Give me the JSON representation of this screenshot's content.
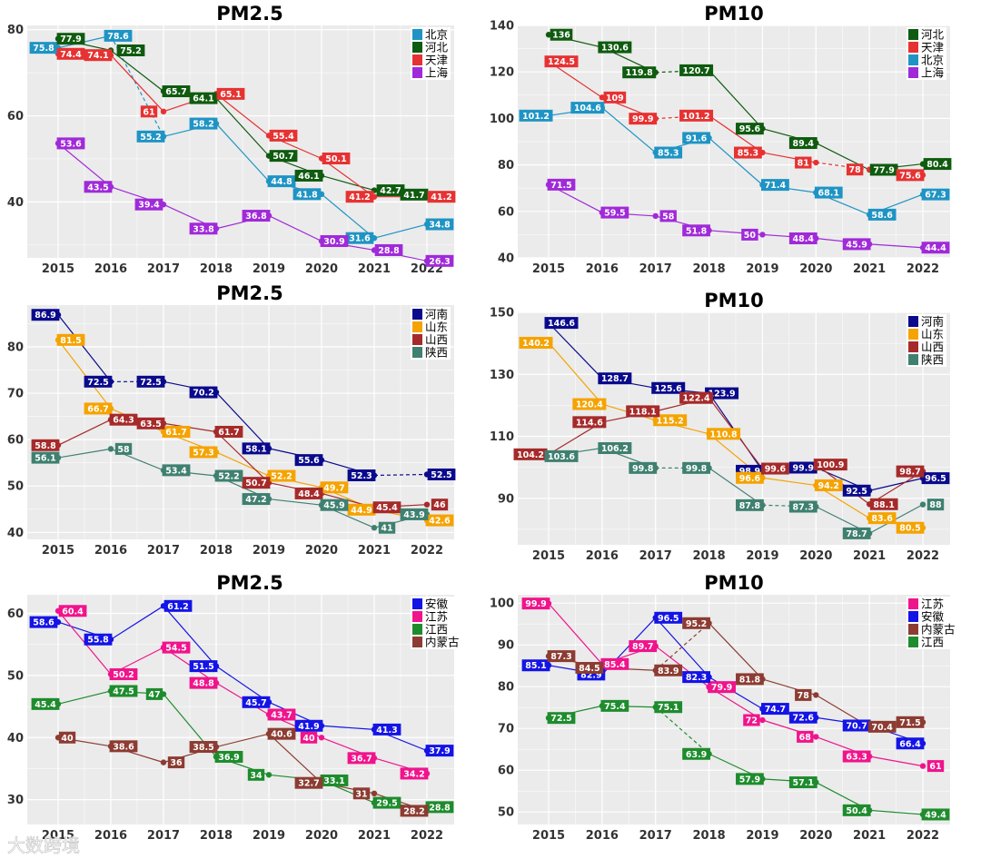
{
  "watermark": "大数跨境",
  "chart_data": [
    {
      "type": "line",
      "title": "PM2.5",
      "categories": [
        "2015",
        "2016",
        "2017",
        "2018",
        "2019",
        "2020",
        "2021",
        "2022"
      ],
      "ylim": [
        27,
        81
      ],
      "yticks": [
        40,
        60,
        80
      ],
      "legend": [
        "北京",
        "河北",
        "天津",
        "上海"
      ],
      "series": [
        {
          "name": "北京",
          "color": "#1f94c4",
          "values": [
            75.8,
            78.6,
            55.2,
            58.2,
            44.8,
            41.8,
            31.6,
            34.8
          ],
          "labels": [
            75.8,
            78.6,
            55.2,
            58.2,
            44.8,
            41.8,
            31.6,
            34.8
          ],
          "dashed": [
            1
          ]
        },
        {
          "name": "河北",
          "color": "#0f5b0f",
          "values": [
            77.9,
            75.2,
            65.7,
            64.1,
            50.7,
            46.1,
            42.7,
            41.7
          ],
          "labels": [
            77.9,
            75.2,
            65.7,
            64.1,
            50.7,
            46.1,
            42.7,
            41.7
          ],
          "dashed": []
        },
        {
          "name": "天津",
          "color": "#e63232",
          "values": [
            74.4,
            74.1,
            61,
            65.1,
            55.4,
            50.1,
            41.2,
            41.2
          ],
          "labels": [
            74.4,
            74.1,
            61,
            65.1,
            55.4,
            50.1,
            41.2,
            41.2
          ],
          "dashed": []
        },
        {
          "name": "上海",
          "color": "#a02ad8",
          "values": [
            53.6,
            43.5,
            39.4,
            33.8,
            36.8,
            30.9,
            28.8,
            26.3
          ],
          "labels": [
            53.6,
            43.5,
            39.4,
            33.8,
            36.8,
            30.9,
            28.8,
            26.3
          ],
          "dashed": []
        }
      ]
    },
    {
      "type": "line",
      "title": "PM10",
      "categories": [
        "2015",
        "2016",
        "2017",
        "2018",
        "2019",
        "2020",
        "2021",
        "2022"
      ],
      "ylim": [
        40,
        140
      ],
      "yticks": [
        40,
        60,
        80,
        100,
        120,
        140
      ],
      "legend": [
        "河北",
        "天津",
        "北京",
        "上海"
      ],
      "series": [
        {
          "name": "河北",
          "color": "#0f5b0f",
          "values": [
            136,
            130.6,
            119.8,
            120.7,
            95.6,
            89.4,
            77.9,
            80.4
          ],
          "labels": [
            136,
            130.6,
            119.8,
            120.7,
            95.6,
            89.4,
            77.9,
            80.4
          ],
          "dashed": [
            2
          ]
        },
        {
          "name": "天津",
          "color": "#e63232",
          "values": [
            124.5,
            109,
            99.9,
            101.2,
            85.3,
            81,
            78,
            75.6
          ],
          "labels": [
            124.5,
            109,
            99.9,
            101.2,
            85.3,
            81,
            78,
            75.6
          ],
          "dashed": [
            2,
            5
          ]
        },
        {
          "name": "北京",
          "color": "#1f94c4",
          "values": [
            101.2,
            104.6,
            85.3,
            91.6,
            71.4,
            68.1,
            58.6,
            67.3
          ],
          "labels": [
            101.2,
            104.6,
            85.3,
            91.6,
            71.4,
            68.1,
            58.6,
            67.3
          ],
          "dashed": []
        },
        {
          "name": "上海",
          "color": "#a02ad8",
          "values": [
            71.5,
            59.5,
            58,
            51.8,
            50,
            48.4,
            45.9,
            44.4
          ],
          "labels": [
            71.5,
            59.5,
            58,
            51.8,
            50,
            48.4,
            45.9,
            44.4
          ],
          "dashed": []
        }
      ]
    },
    {
      "type": "line",
      "title": "PM2.5",
      "categories": [
        "2015",
        "2016",
        "2017",
        "2018",
        "2019",
        "2020",
        "2021",
        "2022"
      ],
      "ylim": [
        38.5,
        89
      ],
      "yticks": [
        40,
        50,
        60,
        70,
        80
      ],
      "legend": [
        "河南",
        "山东",
        "山西",
        "陕西"
      ],
      "series": [
        {
          "name": "河南",
          "color": "#0a0a8c",
          "values": [
            86.9,
            72.5,
            72.5,
            70.2,
            58.1,
            55.6,
            52.3,
            52.5
          ],
          "labels": [
            86.9,
            72.5,
            72.5,
            70.2,
            58.1,
            55.6,
            52.3,
            52.5
          ],
          "dashed": [
            1,
            6
          ]
        },
        {
          "name": "山东",
          "color": "#f5a300",
          "values": [
            81.5,
            66.7,
            61.7,
            57.3,
            52.2,
            49.7,
            44.9,
            42.6
          ],
          "labels": [
            81.5,
            66.7,
            61.7,
            57.3,
            52.2,
            49.7,
            44.9,
            42.6
          ],
          "dashed": []
        },
        {
          "name": "山西",
          "color": "#a62a2a",
          "values": [
            58.8,
            64.3,
            63.5,
            61.7,
            50.7,
            48.4,
            45.4,
            46
          ],
          "labels": [
            58.8,
            64.3,
            63.5,
            61.7,
            50.7,
            48.4,
            45.4,
            46
          ],
          "dashed": []
        },
        {
          "name": "陕西",
          "color": "#3f8070",
          "values": [
            56.1,
            58,
            53.4,
            52.2,
            47.2,
            45.9,
            41,
            43.9
          ],
          "labels": [
            56.1,
            58,
            53.4,
            52.2,
            47.2,
            45.9,
            41,
            43.9
          ],
          "dashed": []
        }
      ]
    },
    {
      "type": "line",
      "title": "PM10",
      "categories": [
        "2015",
        "2016",
        "2017",
        "2018",
        "2019",
        "2020",
        "2021",
        "2022"
      ],
      "ylim": [
        75,
        150
      ],
      "yticks": [
        90,
        110,
        130,
        150
      ],
      "legend": [
        "河南",
        "山东",
        "山西",
        "陕西"
      ],
      "series": [
        {
          "name": "河南",
          "color": "#0a0a8c",
          "values": [
            146.6,
            128.7,
            125.6,
            123.9,
            98.9,
            99.9,
            92.5,
            96.5
          ],
          "labels": [
            146.6,
            128.7,
            125.6,
            123.9,
            98.9,
            99.9,
            92.5,
            96.5
          ],
          "dashed": []
        },
        {
          "name": "山东",
          "color": "#f5a300",
          "values": [
            140.2,
            120.4,
            115.2,
            110.8,
            96.6,
            94.2,
            83.6,
            80.5
          ],
          "labels": [
            140.2,
            120.4,
            115.2,
            110.8,
            96.6,
            94.2,
            83.6,
            80.5
          ],
          "dashed": []
        },
        {
          "name": "山西",
          "color": "#a62a2a",
          "values": [
            104.2,
            114.6,
            118.1,
            122.4,
            99.6,
            100.9,
            88.1,
            98.7
          ],
          "labels": [
            104.2,
            114.6,
            118.1,
            122.4,
            99.6,
            100.9,
            88.1,
            98.7
          ],
          "dashed": []
        },
        {
          "name": "陕西",
          "color": "#3f8070",
          "values": [
            103.6,
            106.2,
            99.8,
            99.8,
            87.8,
            87.3,
            78.7,
            88
          ],
          "labels": [
            103.6,
            106.2,
            99.8,
            99.8,
            87.8,
            87.3,
            78.7,
            88
          ],
          "dashed": [
            2,
            4
          ]
        }
      ]
    },
    {
      "type": "line",
      "title": "PM2.5",
      "categories": [
        "2015",
        "2016",
        "2017",
        "2018",
        "2019",
        "2020",
        "2021",
        "2022"
      ],
      "ylim": [
        26,
        63
      ],
      "yticks": [
        30,
        40,
        50,
        60
      ],
      "legend": [
        "安徽",
        "江苏",
        "江西",
        "内蒙古"
      ],
      "series": [
        {
          "name": "安徽",
          "color": "#1414e6",
          "values": [
            58.6,
            55.8,
            61.2,
            51.5,
            45.7,
            41.9,
            41.3,
            37.9
          ],
          "labels": [
            58.6,
            55.8,
            61.2,
            51.5,
            45.7,
            41.9,
            41.3,
            37.9
          ],
          "dashed": []
        },
        {
          "name": "江苏",
          "color": "#f0148c",
          "values": [
            60.4,
            50.2,
            54.5,
            48.8,
            43.7,
            40,
            36.7,
            34.2
          ],
          "labels": [
            60.4,
            50.2,
            54.5,
            48.8,
            43.7,
            40,
            36.7,
            34.2
          ],
          "dashed": []
        },
        {
          "name": "江西",
          "color": "#1e8c2d",
          "values": [
            45.4,
            47.5,
            47,
            36.9,
            34,
            33.1,
            29.5,
            28.8
          ],
          "labels": [
            45.4,
            47.5,
            47,
            36.9,
            34,
            33.1,
            29.5,
            28.8
          ],
          "dashed": []
        },
        {
          "name": "内蒙古",
          "color": "#8c3c32",
          "values": [
            40,
            38.6,
            36,
            38.5,
            40.6,
            32.7,
            31,
            28.2
          ],
          "labels": [
            40,
            38.6,
            36,
            38.5,
            40.6,
            32.7,
            31,
            28.2
          ],
          "dashed": []
        }
      ]
    },
    {
      "type": "line",
      "title": "PM10",
      "categories": [
        "2015",
        "2016",
        "2017",
        "2018",
        "2019",
        "2020",
        "2021",
        "2022"
      ],
      "ylim": [
        47,
        102
      ],
      "yticks": [
        50,
        60,
        70,
        80,
        90,
        100
      ],
      "legend": [
        "江苏",
        "安徽",
        "内蒙古",
        "江西"
      ],
      "series": [
        {
          "name": "江苏",
          "color": "#f0148c",
          "values": [
            99.9,
            85.4,
            89.7,
            79.9,
            72,
            68,
            63.3,
            61
          ],
          "labels": [
            99.9,
            85.4,
            89.7,
            79.9,
            72,
            68,
            63.3,
            61
          ],
          "dashed": []
        },
        {
          "name": "安徽",
          "color": "#1414e6",
          "values": [
            85.1,
            82.9,
            96.5,
            82.3,
            74.7,
            72.6,
            70.7,
            66.4
          ],
          "labels": [
            85.1,
            82.9,
            96.5,
            82.3,
            74.7,
            72.6,
            70.7,
            66.4
          ],
          "dashed": []
        },
        {
          "name": "内蒙古",
          "color": "#8c3c32",
          "values": [
            87.3,
            84.5,
            83.9,
            95.2,
            81.8,
            78,
            70.4,
            71.5
          ],
          "labels": [
            87.3,
            84.5,
            83.9,
            95.2,
            81.8,
            78,
            70.4,
            71.5
          ],
          "dashed": [
            2
          ]
        },
        {
          "name": "江西",
          "color": "#1e8c2d",
          "values": [
            72.5,
            75.4,
            75.1,
            63.9,
            57.9,
            57.1,
            50.4,
            49.4
          ],
          "labels": [
            72.5,
            75.4,
            75.1,
            63.9,
            57.9,
            57.1,
            50.4,
            49.4
          ],
          "dashed": [
            2
          ]
        }
      ]
    }
  ]
}
